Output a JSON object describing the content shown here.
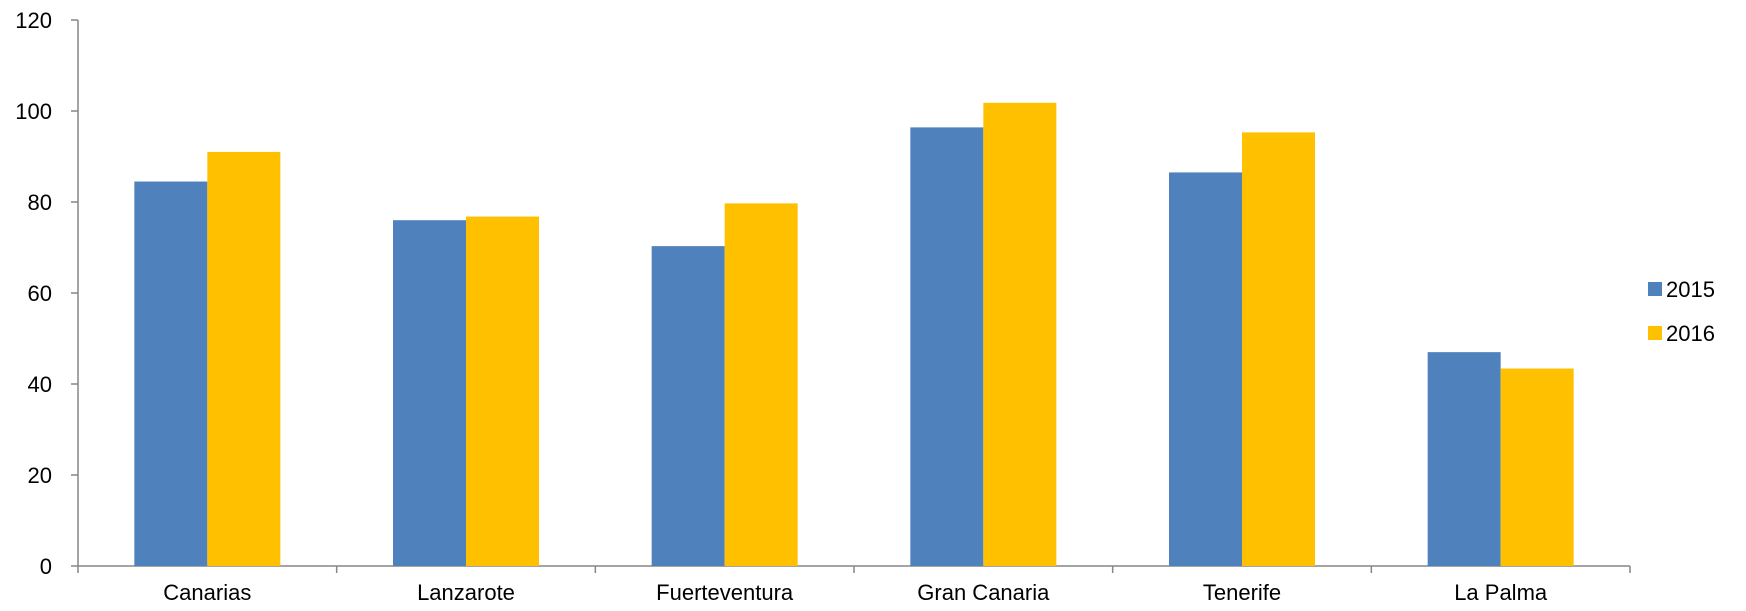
{
  "chart_data": {
    "type": "bar",
    "title": "",
    "xlabel": "",
    "ylabel": "",
    "categories": [
      "Canarias",
      "Lanzarote",
      "Fuerteventura",
      "Gran Canaria",
      "Tenerife",
      "La Palma"
    ],
    "series": [
      {
        "name": "2015",
        "color": "#4f81bd",
        "values": [
          84.5,
          76.0,
          70.3,
          96.4,
          86.5,
          47.0
        ]
      },
      {
        "name": "2016",
        "color": "#ffc000",
        "values": [
          91.0,
          76.8,
          79.7,
          101.8,
          95.3,
          43.4
        ]
      }
    ],
    "ylim": [
      0,
      120
    ],
    "yticks": [
      "0",
      "20",
      "40",
      "60",
      "80",
      "100",
      "120"
    ],
    "grid": false,
    "legend_position": "right"
  }
}
